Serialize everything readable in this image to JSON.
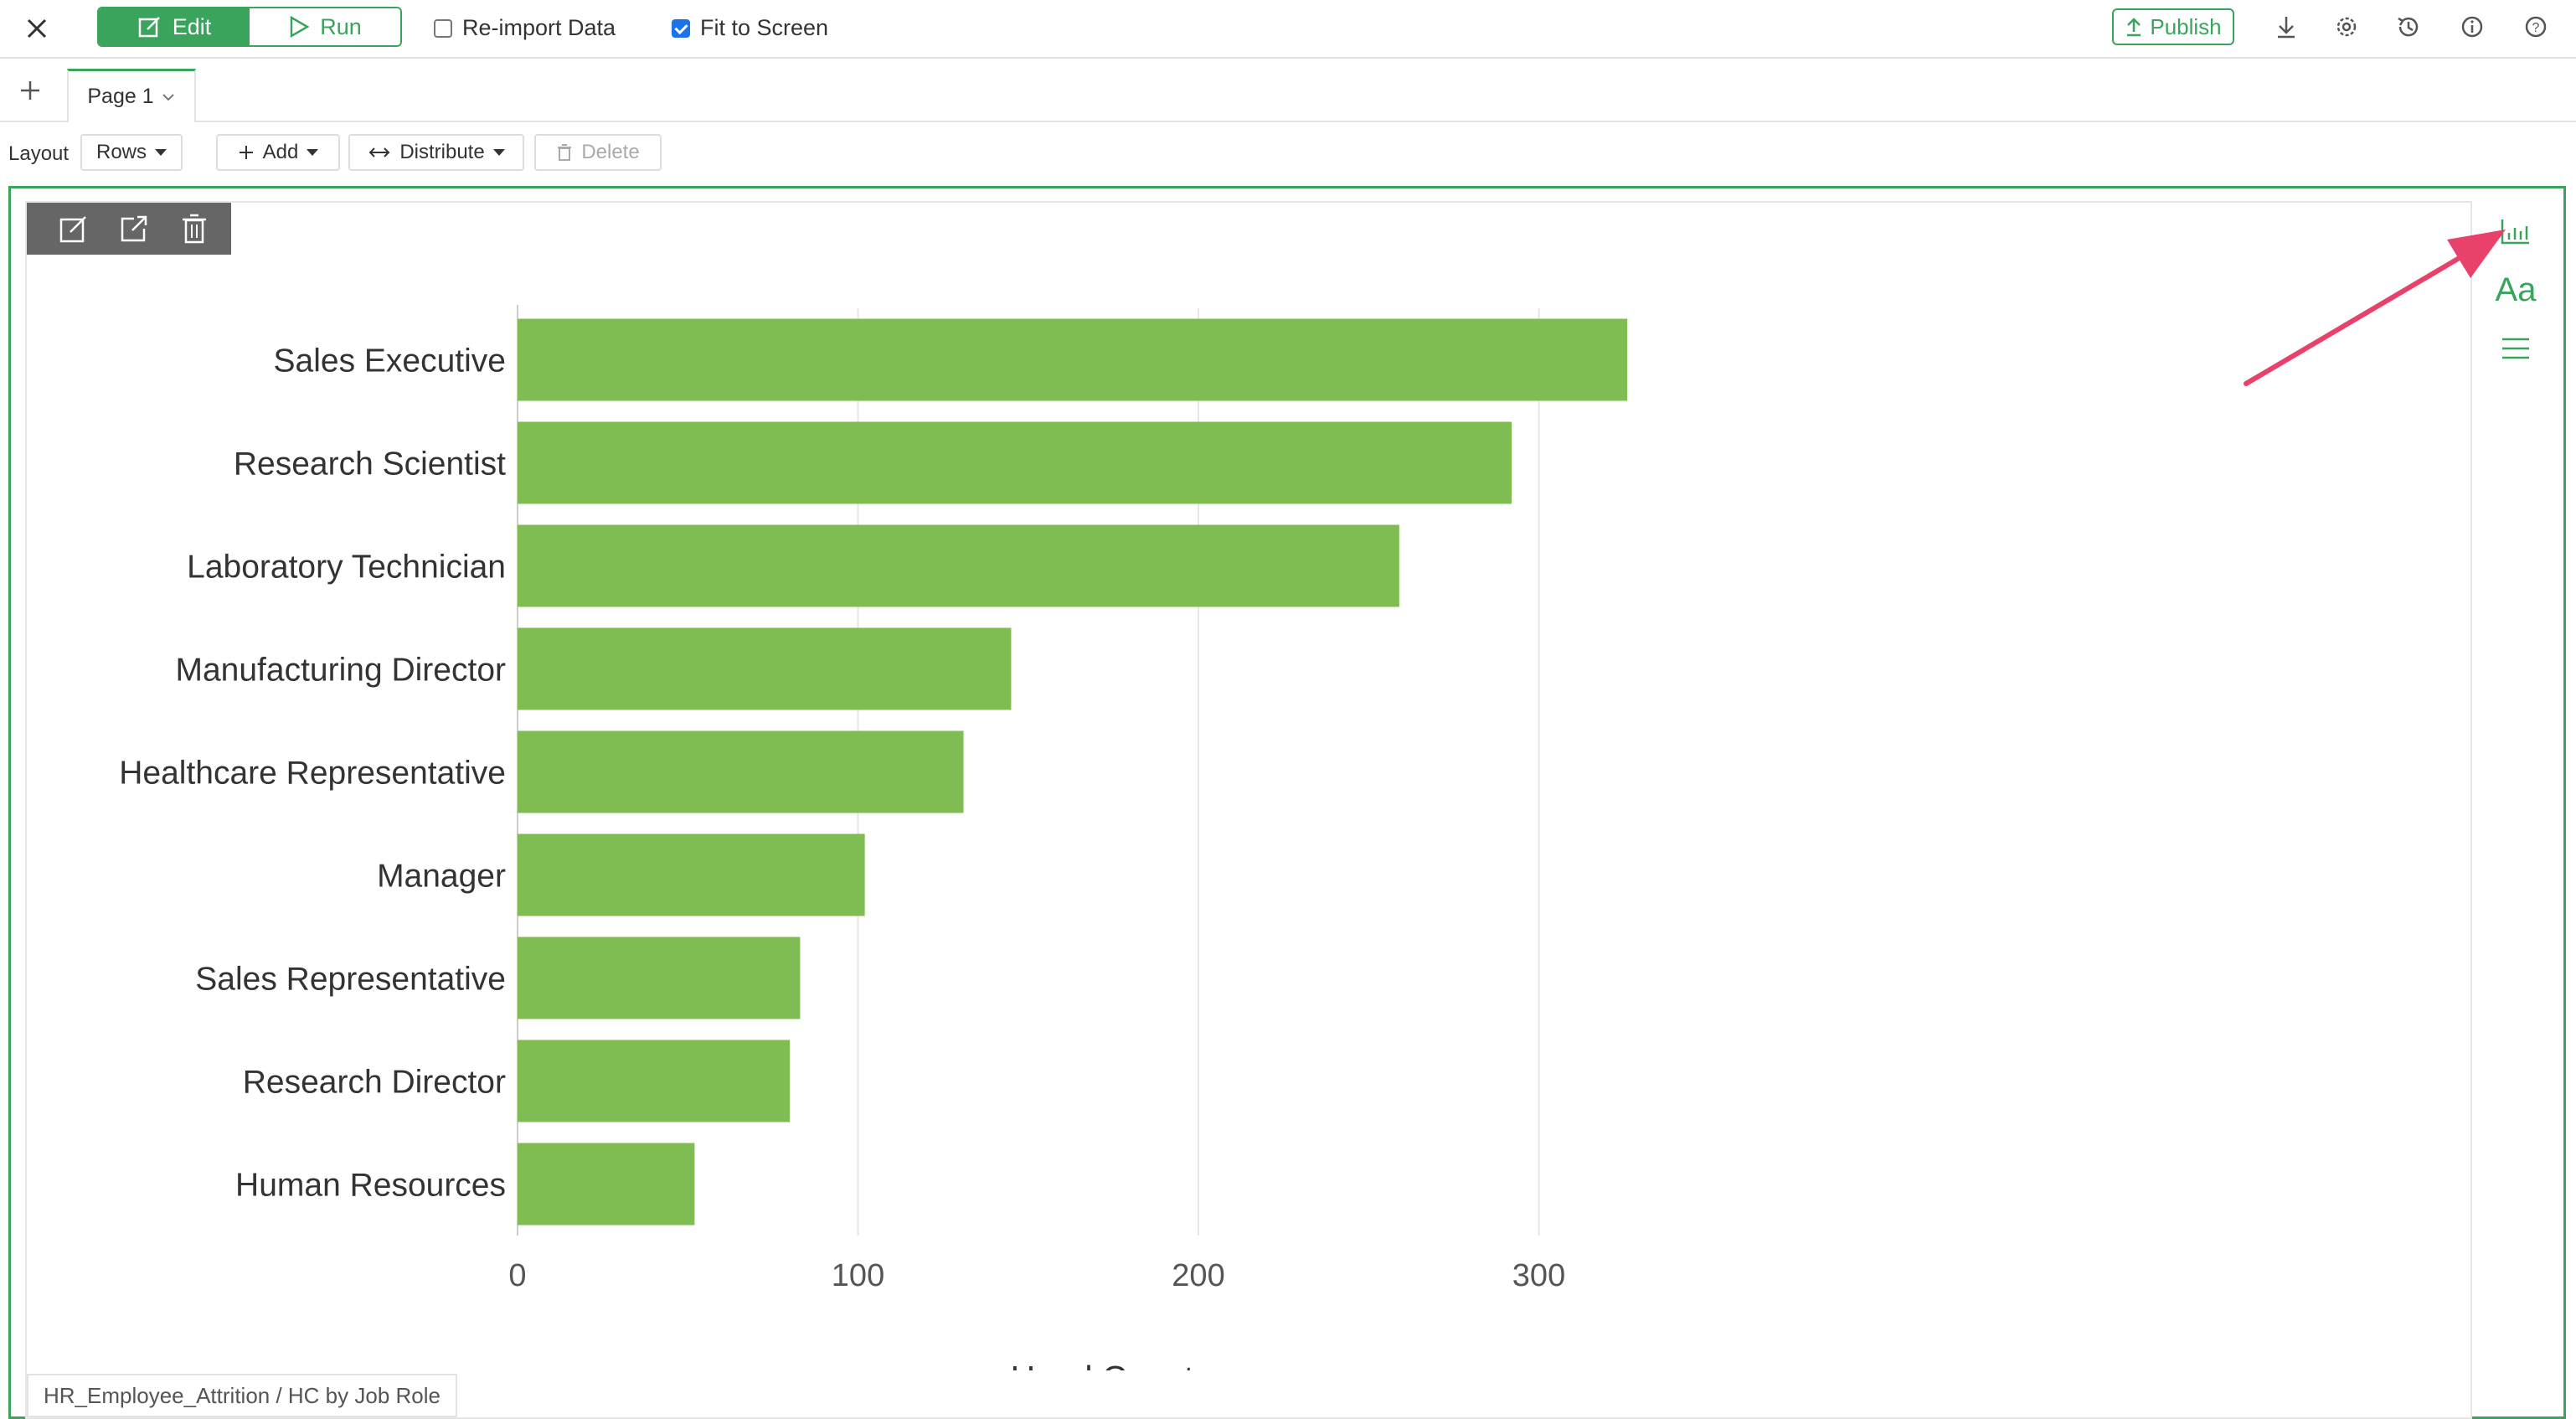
{
  "topbar": {
    "edit_label": "Edit",
    "run_label": "Run",
    "reimport_label": "Re-import Data",
    "reimport_checked": false,
    "fit_label": "Fit to Screen",
    "fit_checked": true,
    "publish_label": "Publish",
    "icons": [
      "close-icon",
      "download-icon",
      "gear-icon",
      "history-icon",
      "info-icon",
      "help-icon"
    ]
  },
  "tabs": {
    "page_label": "Page 1"
  },
  "toolbar": {
    "layout_label": "Layout",
    "rows_label": "Rows",
    "add_label": "Add",
    "distribute_label": "Distribute",
    "delete_label": "Delete"
  },
  "panel": {
    "tool_icons": [
      "edit-icon",
      "open-external-icon",
      "trash-icon"
    ],
    "side_icons": [
      "bar-chart-icon",
      "font-icon",
      "menu-icon"
    ],
    "side_font_label": "Aa",
    "footer": "HR_Employee_Attrition / HC by Job Role"
  },
  "colors": {
    "accent": "#3aa45c",
    "bar": "#7fbc52",
    "arrow": "#e8416a"
  },
  "chart_data": {
    "type": "bar",
    "orientation": "horizontal",
    "categories": [
      "Sales Executive",
      "Research Scientist",
      "Laboratory Technician",
      "Manufacturing Director",
      "Healthcare Representative",
      "Manager",
      "Sales Representative",
      "Research Director",
      "Human Resources"
    ],
    "values": [
      326,
      292,
      259,
      145,
      131,
      102,
      83,
      80,
      52
    ],
    "xlabel": "Head Count",
    "ylabel": "",
    "xticks": [
      "0",
      "100",
      "200",
      "300"
    ],
    "xlim": [
      0,
      350
    ],
    "grid": true
  }
}
